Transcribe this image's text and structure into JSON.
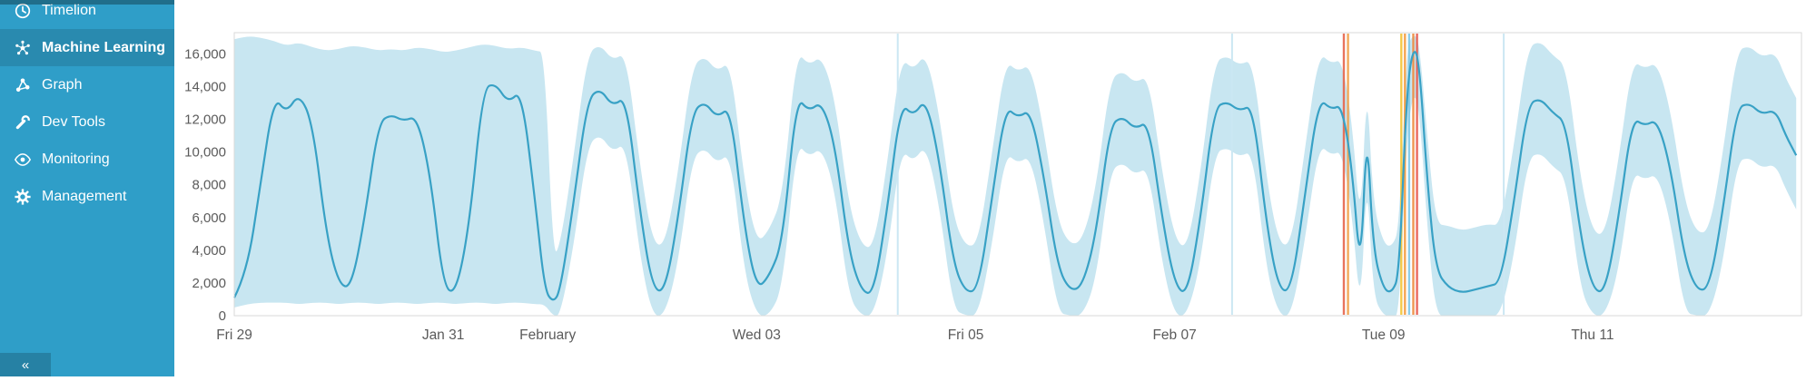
{
  "sidebar": {
    "bg_color": "#2f9ec8",
    "collapse_label": "«",
    "items": [
      {
        "label": "Timelion",
        "icon": "clock-icon",
        "active": false
      },
      {
        "label": "Machine Learning",
        "icon": "machine-learning-icon",
        "active": true
      },
      {
        "label": "Graph",
        "icon": "graph-icon",
        "active": false
      },
      {
        "label": "Dev Tools",
        "icon": "wrench-icon",
        "active": false
      },
      {
        "label": "Monitoring",
        "icon": "eye-icon",
        "active": false
      },
      {
        "label": "Management",
        "icon": "gear-icon",
        "active": false
      }
    ]
  },
  "chart_data": {
    "type": "area",
    "title": "",
    "xlabel": "",
    "ylabel": "",
    "x_domain": [
      0,
      15
    ],
    "y_domain": [
      0,
      17300
    ],
    "x_ticks": [
      {
        "t": 0,
        "label": "Fri 29"
      },
      {
        "t": 2,
        "label": "Jan 31"
      },
      {
        "t": 3,
        "label": "February"
      },
      {
        "t": 5,
        "label": "Wed 03"
      },
      {
        "t": 7,
        "label": "Fri 05"
      },
      {
        "t": 9,
        "label": "Feb 07"
      },
      {
        "t": 11,
        "label": "Tue 09"
      },
      {
        "t": 13,
        "label": "Thu 11"
      }
    ],
    "y_ticks": [
      {
        "v": 0,
        "label": "0"
      },
      {
        "v": 2000,
        "label": "2,000"
      },
      {
        "v": 4000,
        "label": "4,000"
      },
      {
        "v": 6000,
        "label": "6,000"
      },
      {
        "v": 8000,
        "label": "8,000"
      },
      {
        "v": 10000,
        "label": "10,000"
      },
      {
        "v": 12000,
        "label": "12,000"
      },
      {
        "v": 14000,
        "label": "14,000"
      },
      {
        "v": 16000,
        "label": "16,000"
      }
    ],
    "columns": [
      "time_days_from_Fri_29",
      "model_lower",
      "actual",
      "model_upper"
    ],
    "points": [
      [
        0,
        500,
        1100,
        16900
      ],
      [
        0.12,
        700,
        2600,
        17100
      ],
      [
        0.25,
        800,
        8000,
        17000
      ],
      [
        0.38,
        800,
        13400,
        16800
      ],
      [
        0.5,
        800,
        12400,
        16500
      ],
      [
        0.62,
        700,
        13600,
        16700
      ],
      [
        0.75,
        800,
        11800,
        16400
      ],
      [
        0.88,
        800,
        5000,
        16200
      ],
      [
        1,
        700,
        1900,
        16300
      ],
      [
        1.12,
        800,
        1700,
        16500
      ],
      [
        1.25,
        800,
        6000,
        16400
      ],
      [
        1.38,
        700,
        11800,
        16200
      ],
      [
        1.5,
        800,
        12300,
        16300
      ],
      [
        1.62,
        800,
        11900,
        16200
      ],
      [
        1.75,
        700,
        12200,
        16400
      ],
      [
        1.88,
        800,
        8500,
        16300
      ],
      [
        2,
        800,
        1800,
        16100
      ],
      [
        2.12,
        700,
        1300,
        16200
      ],
      [
        2.25,
        800,
        5500,
        16400
      ],
      [
        2.38,
        800,
        13900,
        16600
      ],
      [
        2.5,
        700,
        14200,
        16500
      ],
      [
        2.62,
        800,
        13000,
        16300
      ],
      [
        2.75,
        800,
        13800,
        16400
      ],
      [
        2.88,
        700,
        7000,
        16200
      ],
      [
        2.97,
        700,
        1600,
        16100
      ],
      [
        3.05,
        0,
        800,
        3600
      ],
      [
        3.12,
        0,
        1500,
        4300
      ],
      [
        3.25,
        4300,
        7000,
        9800
      ],
      [
        3.38,
        10400,
        13200,
        16000
      ],
      [
        3.5,
        11100,
        13900,
        16600
      ],
      [
        3.62,
        10000,
        12800,
        15600
      ],
      [
        3.75,
        10600,
        13400,
        16100
      ],
      [
        3.88,
        3700,
        6500,
        9300
      ],
      [
        4,
        0,
        1700,
        4500
      ],
      [
        4.12,
        0,
        1400,
        4200
      ],
      [
        4.25,
        3200,
        6000,
        8800
      ],
      [
        4.38,
        9600,
        12400,
        15200
      ],
      [
        4.5,
        10300,
        13100,
        15900
      ],
      [
        4.62,
        9300,
        12100,
        14900
      ],
      [
        4.75,
        10000,
        12800,
        15600
      ],
      [
        4.88,
        2700,
        5500,
        8300
      ],
      [
        5,
        0,
        1600,
        4400
      ],
      [
        5.12,
        0,
        2400,
        5200
      ],
      [
        5.25,
        1700,
        4500,
        7300
      ],
      [
        5.38,
        10600,
        13400,
        16200
      ],
      [
        5.5,
        9700,
        12500,
        15300
      ],
      [
        5.62,
        10300,
        13100,
        15900
      ],
      [
        5.75,
        7700,
        10500,
        13300
      ],
      [
        5.88,
        1200,
        4000,
        6800
      ],
      [
        6,
        0,
        1500,
        4300
      ],
      [
        6.12,
        0,
        1300,
        4100
      ],
      [
        6.25,
        3700,
        6500,
        9300
      ],
      [
        6.38,
        10200,
        13000,
        15800
      ],
      [
        6.5,
        9400,
        12200,
        15000
      ],
      [
        6.62,
        10500,
        13300,
        16100
      ],
      [
        6.75,
        6700,
        9500,
        12300
      ],
      [
        6.88,
        400,
        3200,
        6000
      ],
      [
        7,
        0,
        1400,
        4200
      ],
      [
        7.12,
        0,
        1600,
        4400
      ],
      [
        7.25,
        4200,
        7000,
        9800
      ],
      [
        7.38,
        10000,
        12800,
        15600
      ],
      [
        7.5,
        9300,
        12100,
        14900
      ],
      [
        7.62,
        9800,
        12600,
        15400
      ],
      [
        7.75,
        5700,
        8500,
        11300
      ],
      [
        7.88,
        200,
        3000,
        5800
      ],
      [
        8,
        0,
        1500,
        4300
      ],
      [
        8.12,
        0,
        1800,
        4600
      ],
      [
        8.25,
        2200,
        5000,
        7800
      ],
      [
        8.38,
        8800,
        11600,
        14400
      ],
      [
        8.5,
        9400,
        12200,
        15000
      ],
      [
        8.62,
        8600,
        11400,
        14200
      ],
      [
        8.75,
        9100,
        11900,
        14700
      ],
      [
        8.88,
        3200,
        6000,
        8800
      ],
      [
        9,
        0,
        1900,
        4700
      ],
      [
        9.12,
        0,
        1200,
        4000
      ],
      [
        9.25,
        3200,
        6000,
        8800
      ],
      [
        9.38,
        9900,
        12700,
        15500
      ],
      [
        9.5,
        10300,
        13100,
        15900
      ],
      [
        9.62,
        9700,
        12500,
        15300
      ],
      [
        9.75,
        10100,
        12900,
        15700
      ],
      [
        9.88,
        2700,
        5500,
        8300
      ],
      [
        10,
        0,
        1500,
        4300
      ],
      [
        10.12,
        0,
        1600,
        4400
      ],
      [
        10.25,
        4700,
        7500,
        10300
      ],
      [
        10.38,
        10500,
        13300,
        16100
      ],
      [
        10.5,
        9800,
        12600,
        15400
      ],
      [
        10.6,
        10100,
        12900,
        15700
      ],
      [
        10.7,
        6200,
        9000,
        11800
      ],
      [
        10.78,
        0,
        2400,
        5200
      ],
      [
        10.84,
        9000,
        11800,
        14600
      ],
      [
        10.9,
        1200,
        4000,
        6800
      ],
      [
        11,
        0,
        1600,
        4400
      ],
      [
        11.08,
        0,
        1400,
        4200
      ],
      [
        11.15,
        0,
        2500,
        5300
      ],
      [
        11.22,
        10700,
        13500,
        16300
      ],
      [
        11.28,
        13600,
        16400,
        17200
      ],
      [
        11.34,
        12900,
        15700,
        16900
      ],
      [
        11.42,
        5200,
        8000,
        10800
      ],
      [
        11.5,
        0,
        2800,
        5600
      ],
      [
        11.62,
        0,
        1700,
        5500
      ],
      [
        11.75,
        0,
        1400,
        5200
      ],
      [
        11.88,
        0,
        1600,
        5400
      ],
      [
        12,
        0,
        1800,
        5600
      ],
      [
        12.12,
        0,
        2000,
        5500
      ],
      [
        12.25,
        3700,
        7000,
        10500
      ],
      [
        12.38,
        9600,
        12900,
        16400
      ],
      [
        12.5,
        10000,
        13300,
        16800
      ],
      [
        12.62,
        9100,
        12400,
        15900
      ],
      [
        12.75,
        8500,
        11800,
        15300
      ],
      [
        12.88,
        1700,
        5000,
        8500
      ],
      [
        13,
        0,
        1600,
        5100
      ],
      [
        13.12,
        0,
        1400,
        4900
      ],
      [
        13.25,
        2700,
        6000,
        9500
      ],
      [
        13.38,
        8800,
        12100,
        15600
      ],
      [
        13.5,
        8300,
        11600,
        15100
      ],
      [
        13.62,
        8700,
        12000,
        15500
      ],
      [
        13.75,
        5700,
        9000,
        12500
      ],
      [
        13.88,
        200,
        3500,
        7000
      ],
      [
        14,
        0,
        1500,
        5000
      ],
      [
        14.12,
        0,
        1700,
        5200
      ],
      [
        14.25,
        3200,
        6500,
        10000
      ],
      [
        14.38,
        9400,
        12700,
        16200
      ],
      [
        14.5,
        9700,
        13000,
        16500
      ],
      [
        14.62,
        9000,
        12300,
        15800
      ],
      [
        14.75,
        9300,
        12600,
        16100
      ],
      [
        14.85,
        7700,
        11000,
        14500
      ],
      [
        14.95,
        6500,
        9800,
        13300
      ]
    ],
    "annotations": [
      {
        "t": 10.62,
        "color": "#e7664c"
      },
      {
        "t": 10.66,
        "color": "#f1a14a"
      },
      {
        "t": 11.17,
        "color": "#f3c536"
      },
      {
        "t": 11.205,
        "color": "#f59c3f"
      },
      {
        "t": 11.245,
        "color": "#7fc9e8"
      },
      {
        "t": 11.285,
        "color": "#ef8b3e"
      },
      {
        "t": 11.32,
        "color": "#e85a4f"
      }
    ],
    "guides": [
      {
        "t": 6.35
      },
      {
        "t": 9.55
      },
      {
        "t": 12.15
      }
    ],
    "legend": "off",
    "grid": "off",
    "colors": {
      "line": "#38a1c5",
      "band": "#c8e6f1",
      "guide": "#cbe7f3",
      "plot_border": "#d9d9d9",
      "axis_text": "#5b5b5b"
    }
  }
}
